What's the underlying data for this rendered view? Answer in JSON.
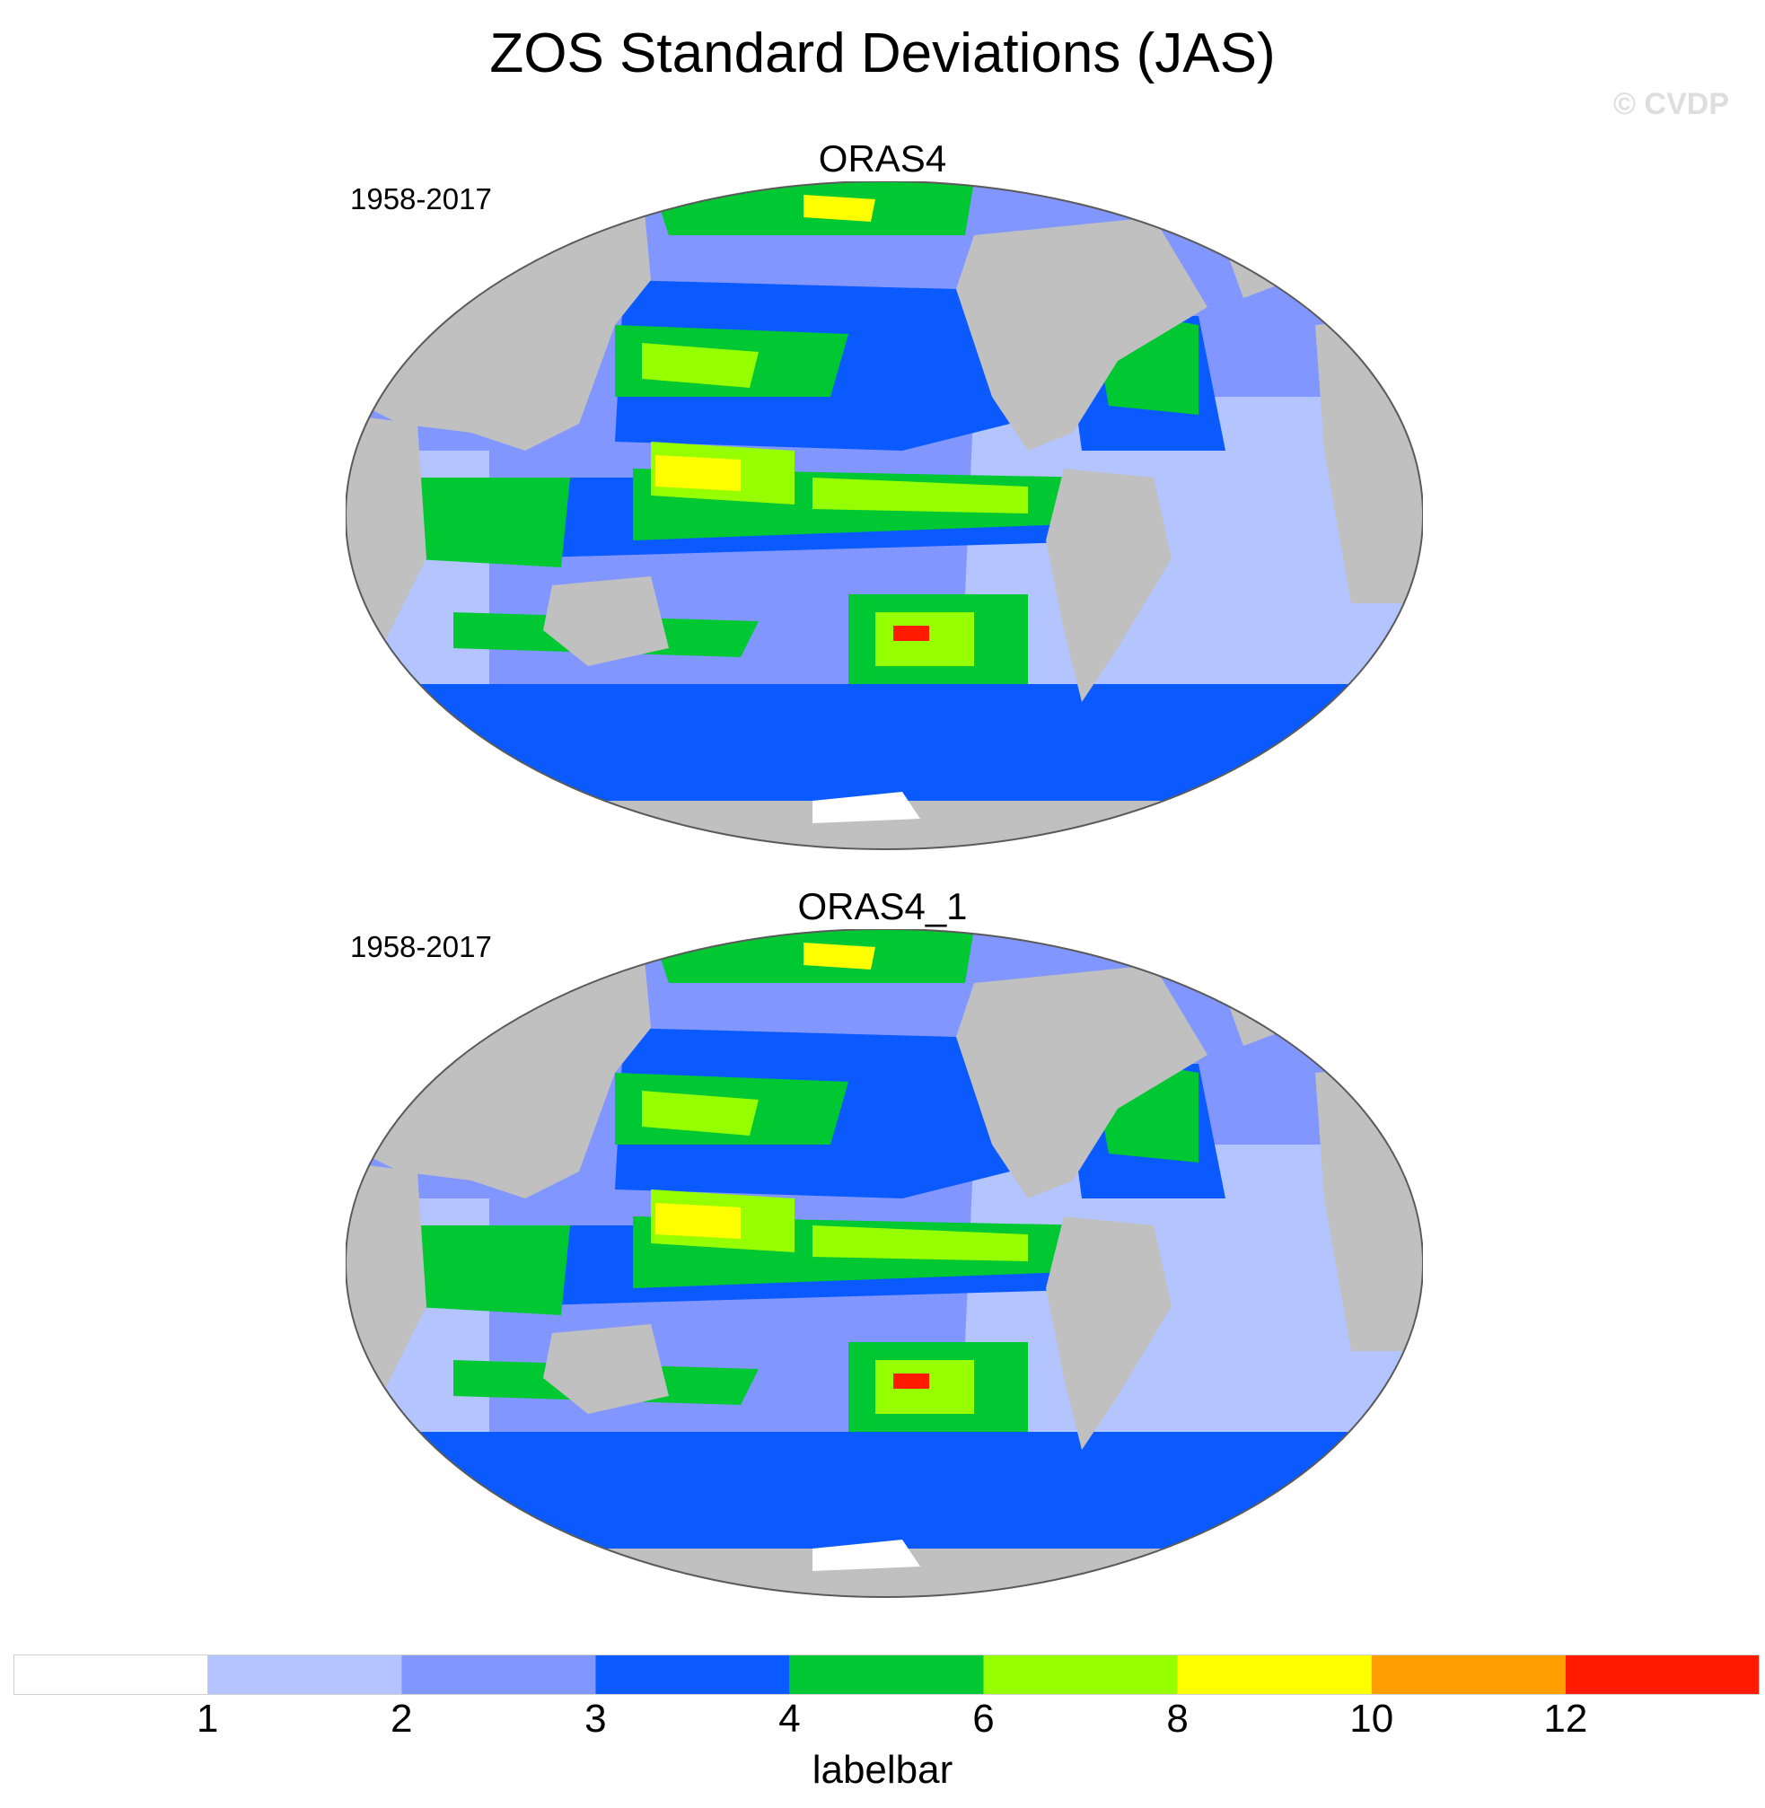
{
  "figure": {
    "title": "ZOS Standard Deviations (JAS)",
    "watermark": "© CVDP"
  },
  "panels": [
    {
      "title": "ORAS4",
      "years": "1958-2017"
    },
    {
      "title": "ORAS4_1",
      "years": "1958-2017"
    }
  ],
  "colors": {
    "land": "#c0c0c0",
    "missing": "#ffffff",
    "outline": "#5a5a5a"
  },
  "labelbar": {
    "title": "labelbar",
    "boxes": [
      {
        "color": "#ffffff"
      },
      {
        "color": "#b4c4ff"
      },
      {
        "color": "#8296ff"
      },
      {
        "color": "#0a5aff"
      },
      {
        "color": "#00c832"
      },
      {
        "color": "#96ff00"
      },
      {
        "color": "#ffff00"
      },
      {
        "color": "#ff9e00"
      },
      {
        "color": "#ff1a00"
      }
    ],
    "ticks": [
      "1",
      "2",
      "3",
      "4",
      "6",
      "8",
      "10",
      "12"
    ]
  }
}
